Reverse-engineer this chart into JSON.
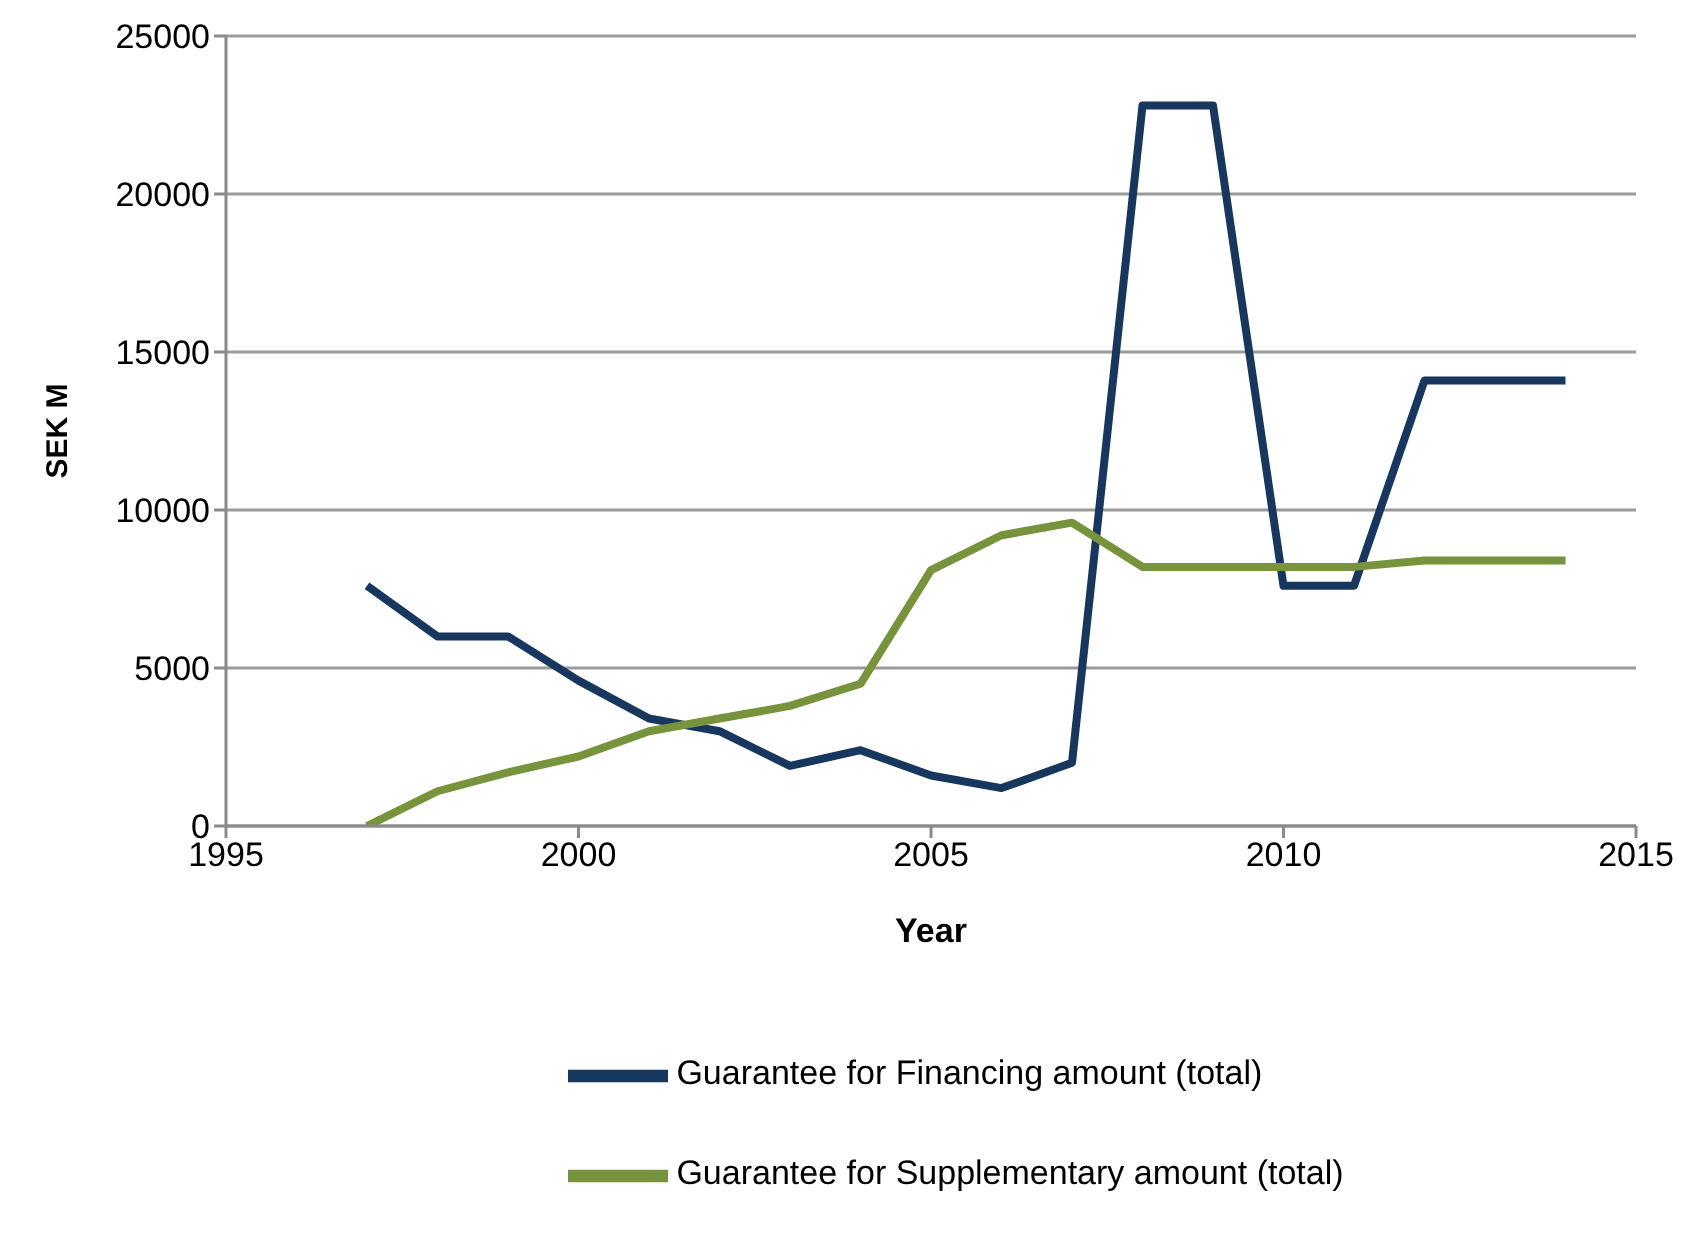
{
  "chart_data": {
    "type": "line",
    "xlabel": "Year",
    "ylabel": "SEK M",
    "x": [
      1997,
      1998,
      1999,
      2000,
      2001,
      2002,
      2003,
      2004,
      2005,
      2006,
      2007,
      2008,
      2009,
      2010,
      2011,
      2012,
      2013,
      2014
    ],
    "series": [
      {
        "name": "Guarantee for Financing amount (total)",
        "color": "#17375e",
        "values": [
          7600,
          6000,
          6000,
          4600,
          3400,
          3000,
          1900,
          2400,
          1600,
          1200,
          2000,
          22800,
          22800,
          7600,
          7600,
          14100,
          14100,
          14100
        ]
      },
      {
        "name": "Guarantee for Supplementary amount (total)",
        "color": "#77933c",
        "values": [
          0,
          1100,
          1700,
          2200,
          3000,
          3400,
          3800,
          4500,
          8100,
          9200,
          9600,
          8200,
          8200,
          8200,
          8200,
          8400,
          8400,
          8400
        ]
      }
    ],
    "xlim": [
      1995,
      2015
    ],
    "xticks": [
      1995,
      2000,
      2005,
      2010,
      2015
    ],
    "ylim": [
      0,
      25000
    ],
    "yticks": [
      0,
      5000,
      10000,
      15000,
      20000,
      25000
    ],
    "grid": "y",
    "legend": "bottom",
    "marker": "none",
    "line_style": "solid"
  }
}
